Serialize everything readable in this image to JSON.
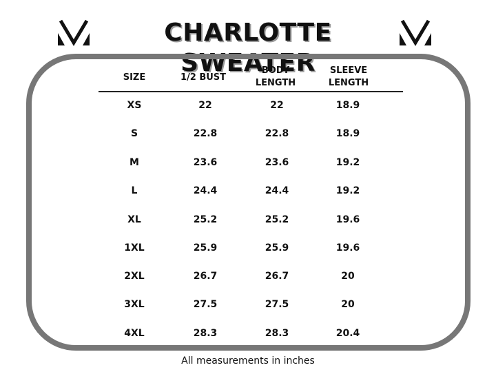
{
  "title": "CHARLOTTE SWEATER",
  "logo_icon": "v-chevron-logo-icon",
  "table": {
    "headers": [
      {
        "line1": "SIZE",
        "line2": ""
      },
      {
        "line1": "1/2 BUST",
        "line2": ""
      },
      {
        "line1": "BODY",
        "line2": "LENGTH"
      },
      {
        "line1": "SLEEVE",
        "line2": "LENGTH"
      }
    ],
    "rows": [
      {
        "size": "XS",
        "bust": "22",
        "body": "22",
        "sleeve": "18.9"
      },
      {
        "size": "S",
        "bust": "22.8",
        "body": "22.8",
        "sleeve": "18.9"
      },
      {
        "size": "M",
        "bust": "23.6",
        "body": "23.6",
        "sleeve": "19.2"
      },
      {
        "size": "L",
        "bust": "24.4",
        "body": "24.4",
        "sleeve": "19.2"
      },
      {
        "size": "XL",
        "bust": "25.2",
        "body": "25.2",
        "sleeve": "19.6"
      },
      {
        "size": "1XL",
        "bust": "25.9",
        "body": "25.9",
        "sleeve": "19.6"
      },
      {
        "size": "2XL",
        "bust": "26.7",
        "body": "26.7",
        "sleeve": "20"
      },
      {
        "size": "3XL",
        "bust": "27.5",
        "body": "27.5",
        "sleeve": "20"
      },
      {
        "size": "4XL",
        "bust": "28.3",
        "body": "28.3",
        "sleeve": "20.4"
      }
    ]
  },
  "footer": "All measurements in inches",
  "colors": {
    "frame": "#777777",
    "text": "#111111",
    "title_shadow": "#9a9a9a"
  }
}
